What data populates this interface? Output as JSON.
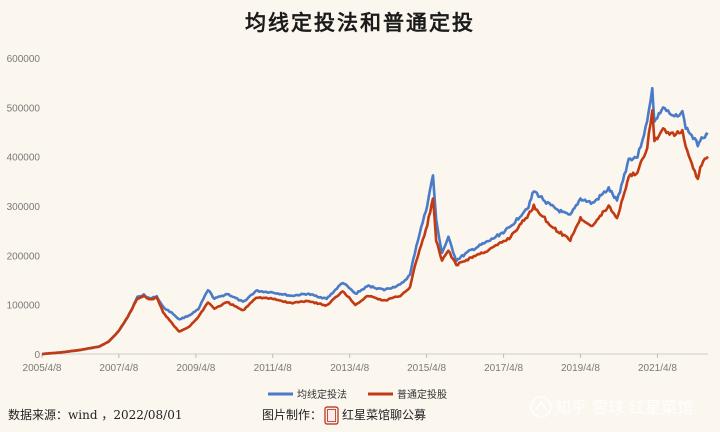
{
  "chart_data": {
    "type": "line",
    "title": "均线定投法和普通定投",
    "xlabel": "",
    "ylabel": "",
    "ylim": [
      0,
      600000
    ],
    "y_ticks": [
      0,
      100000,
      200000,
      300000,
      400000,
      500000,
      600000
    ],
    "y_tick_labels": [
      "0",
      "100000",
      "200000",
      "300000",
      "400000",
      "500000",
      "600000"
    ],
    "x_ticks": [
      "2005/4/8",
      "2007/4/8",
      "2009/4/8",
      "2011/4/8",
      "2013/4/8",
      "2015/4/8",
      "2017/4/8",
      "2019/4/8",
      "2021/4/8"
    ],
    "x_range": [
      "2005/4/8",
      "2022/08/01"
    ],
    "grid": false,
    "legend_position": "bottom-center",
    "series": [
      {
        "name": "均线定投法",
        "color": "#4a7bc8",
        "points": [
          [
            "2005/4/8",
            0
          ],
          [
            "2005/10/1",
            3000
          ],
          [
            "2006/4/1",
            8000
          ],
          [
            "2006/10/1",
            15000
          ],
          [
            "2007/1/1",
            25000
          ],
          [
            "2007/4/1",
            45000
          ],
          [
            "2007/7/1",
            75000
          ],
          [
            "2007/10/1",
            115000
          ],
          [
            "2007/12/1",
            120000
          ],
          [
            "2008/2/1",
            112000
          ],
          [
            "2008/4/1",
            117000
          ],
          [
            "2008/6/1",
            95000
          ],
          [
            "2008/9/1",
            82000
          ],
          [
            "2008/11/1",
            70000
          ],
          [
            "2009/2/1",
            78000
          ],
          [
            "2009/5/1",
            90000
          ],
          [
            "2009/8/1",
            130000
          ],
          [
            "2009/10/1",
            112000
          ],
          [
            "2010/2/1",
            122000
          ],
          [
            "2010/7/1",
            105000
          ],
          [
            "2010/11/1",
            128000
          ],
          [
            "2011/4/1",
            125000
          ],
          [
            "2011/10/1",
            118000
          ],
          [
            "2012/3/1",
            122000
          ],
          [
            "2012/9/1",
            112000
          ],
          [
            "2013/2/1",
            145000
          ],
          [
            "2013/6/1",
            122000
          ],
          [
            "2013/10/1",
            138000
          ],
          [
            "2014/3/1",
            130000
          ],
          [
            "2014/8/1",
            140000
          ],
          [
            "2014/11/1",
            160000
          ],
          [
            "2015/1/1",
            220000
          ],
          [
            "2015/4/1",
            290000
          ],
          [
            "2015/6/8",
            362000
          ],
          [
            "2015/7/8",
            270000
          ],
          [
            "2015/9/1",
            205000
          ],
          [
            "2015/11/1",
            235000
          ],
          [
            "2016/1/15",
            190000
          ],
          [
            "2016/6/1",
            210000
          ],
          [
            "2016/12/1",
            230000
          ],
          [
            "2017/6/1",
            255000
          ],
          [
            "2017/12/1",
            300000
          ],
          [
            "2018/1/20",
            330000
          ],
          [
            "2018/7/1",
            300000
          ],
          [
            "2018/11/1",
            285000
          ],
          [
            "2019/1/1",
            280000
          ],
          [
            "2019/4/8",
            315000
          ],
          [
            "2019/8/1",
            305000
          ],
          [
            "2020/1/1",
            335000
          ],
          [
            "2020/3/20",
            310000
          ],
          [
            "2020/7/10",
            395000
          ],
          [
            "2020/10/1",
            400000
          ],
          [
            "2021/1/1",
            470000
          ],
          [
            "2021/2/18",
            540000
          ],
          [
            "2021/3/10",
            470000
          ],
          [
            "2021/6/1",
            500000
          ],
          [
            "2021/9/1",
            480000
          ],
          [
            "2021/12/1",
            490000
          ],
          [
            "2022/1/1",
            460000
          ],
          [
            "2022/4/26",
            425000
          ],
          [
            "2022/6/1",
            440000
          ],
          [
            "2022/8/1",
            445000
          ]
        ]
      },
      {
        "name": "普通定投股",
        "color": "#c23a12",
        "points": [
          [
            "2005/4/8",
            0
          ],
          [
            "2005/10/1",
            3000
          ],
          [
            "2006/4/1",
            8000
          ],
          [
            "2006/10/1",
            15000
          ],
          [
            "2007/1/1",
            25000
          ],
          [
            "2007/4/1",
            45000
          ],
          [
            "2007/7/1",
            75000
          ],
          [
            "2007/10/1",
            112000
          ],
          [
            "2007/12/1",
            118000
          ],
          [
            "2008/2/1",
            110000
          ],
          [
            "2008/4/1",
            115000
          ],
          [
            "2008/6/1",
            85000
          ],
          [
            "2008/9/1",
            60000
          ],
          [
            "2008/11/1",
            45000
          ],
          [
            "2009/2/1",
            55000
          ],
          [
            "2009/5/1",
            75000
          ],
          [
            "2009/8/1",
            105000
          ],
          [
            "2009/10/1",
            92000
          ],
          [
            "2010/2/1",
            105000
          ],
          [
            "2010/7/1",
            88000
          ],
          [
            "2010/11/1",
            115000
          ],
          [
            "2011/4/1",
            112000
          ],
          [
            "2011/10/1",
            103000
          ],
          [
            "2012/3/1",
            108000
          ],
          [
            "2012/9/1",
            98000
          ],
          [
            "2013/2/1",
            128000
          ],
          [
            "2013/6/1",
            100000
          ],
          [
            "2013/10/1",
            118000
          ],
          [
            "2014/3/1",
            108000
          ],
          [
            "2014/8/1",
            118000
          ],
          [
            "2014/11/1",
            135000
          ],
          [
            "2015/1/1",
            190000
          ],
          [
            "2015/4/1",
            250000
          ],
          [
            "2015/6/8",
            315000
          ],
          [
            "2015/7/8",
            230000
          ],
          [
            "2015/9/1",
            188000
          ],
          [
            "2015/11/1",
            210000
          ],
          [
            "2016/1/15",
            180000
          ],
          [
            "2016/6/1",
            195000
          ],
          [
            "2016/12/1",
            212000
          ],
          [
            "2017/6/1",
            235000
          ],
          [
            "2017/12/1",
            282000
          ],
          [
            "2018/1/20",
            300000
          ],
          [
            "2018/7/1",
            260000
          ],
          [
            "2018/11/1",
            240000
          ],
          [
            "2019/1/1",
            232000
          ],
          [
            "2019/4/8",
            275000
          ],
          [
            "2019/8/1",
            260000
          ],
          [
            "2020/1/1",
            300000
          ],
          [
            "2020/3/20",
            275000
          ],
          [
            "2020/7/10",
            360000
          ],
          [
            "2020/10/1",
            368000
          ],
          [
            "2021/1/1",
            420000
          ],
          [
            "2021/2/18",
            495000
          ],
          [
            "2021/3/10",
            430000
          ],
          [
            "2021/6/1",
            455000
          ],
          [
            "2021/9/1",
            445000
          ],
          [
            "2021/12/1",
            450000
          ],
          [
            "2022/1/1",
            420000
          ],
          [
            "2022/4/26",
            355000
          ],
          [
            "2022/6/1",
            385000
          ],
          [
            "2022/8/1",
            400000
          ]
        ]
      }
    ]
  },
  "footer": {
    "source": "数据来源：wind ，2022/08/01",
    "made_by": "图片制作：",
    "seal": "印",
    "org": "红星菜馆聊公募"
  },
  "watermark": {
    "text": "知乎 雪球 红星菜馆",
    "logo": "zhihu-logo"
  }
}
